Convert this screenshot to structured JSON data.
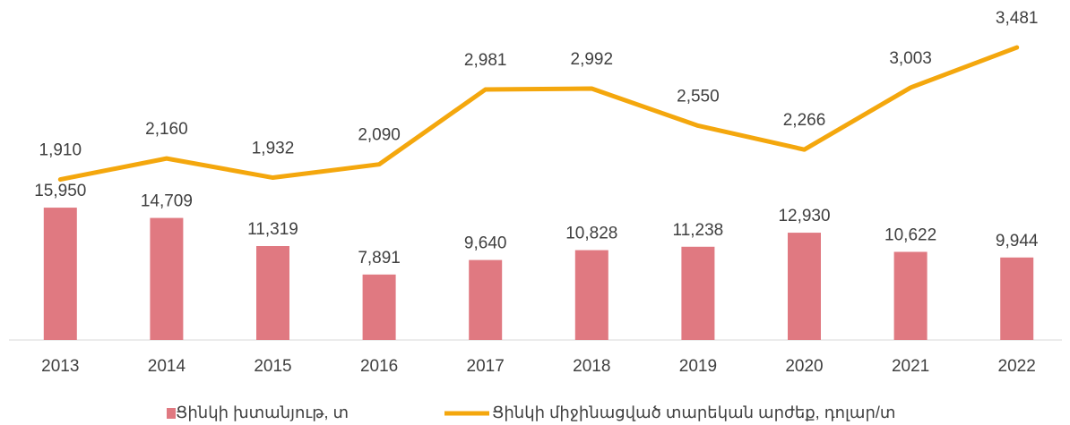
{
  "chart_data": {
    "type": "bar_line",
    "categories": [
      "2013",
      "2014",
      "2015",
      "2016",
      "2017",
      "2018",
      "2019",
      "2020",
      "2021",
      "2022"
    ],
    "ylim": [
      0,
      40000
    ],
    "y2lim": [
      0,
      3950
    ],
    "series": [
      {
        "name": "Ցինկի խտանյութ, տ",
        "type": "bar",
        "color": "#e07981",
        "values": [
          15950,
          14709,
          11319,
          7891,
          9640,
          10828,
          11238,
          12930,
          10622,
          9944
        ],
        "value_labels": [
          "15,950",
          "14,709",
          "11,319",
          "7,891",
          "9,640",
          "10,828",
          "11,238",
          "12,930",
          "10,622",
          "9,944"
        ]
      },
      {
        "name": "Ցինկի միջինացված տարեկան արժեք, դոլար/տ",
        "type": "line",
        "axis": "y2",
        "color": "#f4a70d",
        "values": [
          1910,
          2160,
          1932,
          2090,
          2981,
          2992,
          2550,
          2266,
          3003,
          3481
        ],
        "value_labels": [
          "1,910",
          "2,160",
          "1,932",
          "2,090",
          "2,981",
          "2,992",
          "2,550",
          "2,266",
          "3,003",
          "3,481"
        ]
      }
    ]
  }
}
